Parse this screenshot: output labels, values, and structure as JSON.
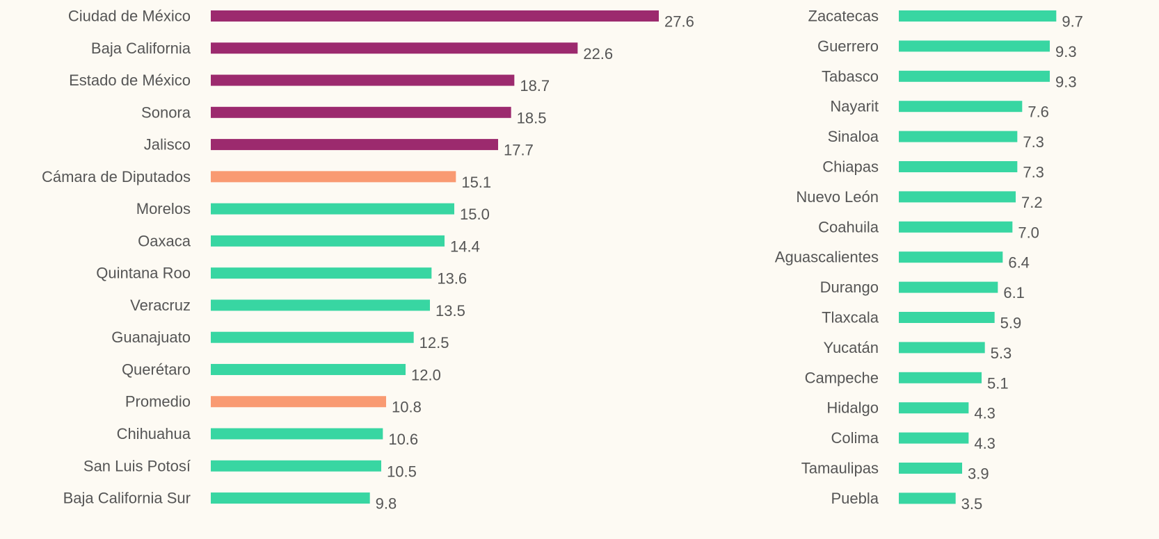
{
  "chart_data": [
    {
      "type": "bar",
      "orientation": "horizontal",
      "categories": [
        "Ciudad de México",
        "Baja California",
        "Estado de México",
        "Sonora",
        "Jalisco",
        "Cámara de Diputados",
        "Morelos",
        "Oaxaca",
        "Quintana Roo",
        "Veracruz",
        "Guanajuato",
        "Querétaro",
        "Promedio",
        "Chihuahua",
        "San Luis Potosí",
        "Baja California Sur"
      ],
      "values": [
        27.6,
        22.6,
        18.7,
        18.5,
        17.7,
        15.1,
        15.0,
        14.4,
        13.6,
        13.5,
        12.5,
        12.0,
        10.8,
        10.6,
        10.5,
        9.8
      ],
      "value_labels": [
        "27.6",
        "22.6",
        "18.7",
        "18.5",
        "17.7",
        "15.1",
        "15.0",
        "14.4",
        "13.6",
        "13.5",
        "12.5",
        "12.0",
        "10.8",
        "10.6",
        "10.5",
        "9.8"
      ],
      "colors": [
        "#9c2a6e",
        "#9c2a6e",
        "#9c2a6e",
        "#9c2a6e",
        "#9c2a6e",
        "#f99a72",
        "#38d6a2",
        "#38d6a2",
        "#38d6a2",
        "#38d6a2",
        "#38d6a2",
        "#38d6a2",
        "#f99a72",
        "#38d6a2",
        "#38d6a2",
        "#38d6a2"
      ]
    },
    {
      "type": "bar",
      "orientation": "horizontal",
      "categories": [
        "Zacatecas",
        "Guerrero",
        "Tabasco",
        "Nayarit",
        "Sinaloa",
        "Chiapas",
        "Nuevo León",
        "Coahuila",
        "Aguascalientes",
        "Durango",
        "Tlaxcala",
        "Yucatán",
        "Campeche",
        "Hidalgo",
        "Colima",
        "Tamaulipas",
        "Puebla"
      ],
      "values": [
        9.7,
        9.3,
        9.3,
        7.6,
        7.3,
        7.3,
        7.2,
        7.0,
        6.4,
        6.1,
        5.9,
        5.3,
        5.1,
        4.3,
        4.3,
        3.9,
        3.5
      ],
      "value_labels": [
        "9.7",
        "9.3",
        "9.3",
        "7.6",
        "7.3",
        "7.3",
        "7.2",
        "7.0",
        "6.4",
        "6.1",
        "5.9",
        "5.3",
        "5.1",
        "4.3",
        "4.3",
        "3.9",
        "3.5"
      ],
      "colors": [
        "#38d6a2",
        "#38d6a2",
        "#38d6a2",
        "#38d6a2",
        "#38d6a2",
        "#38d6a2",
        "#38d6a2",
        "#38d6a2",
        "#38d6a2",
        "#38d6a2",
        "#38d6a2",
        "#38d6a2",
        "#38d6a2",
        "#38d6a2",
        "#38d6a2",
        "#38d6a2",
        "#38d6a2"
      ]
    }
  ]
}
